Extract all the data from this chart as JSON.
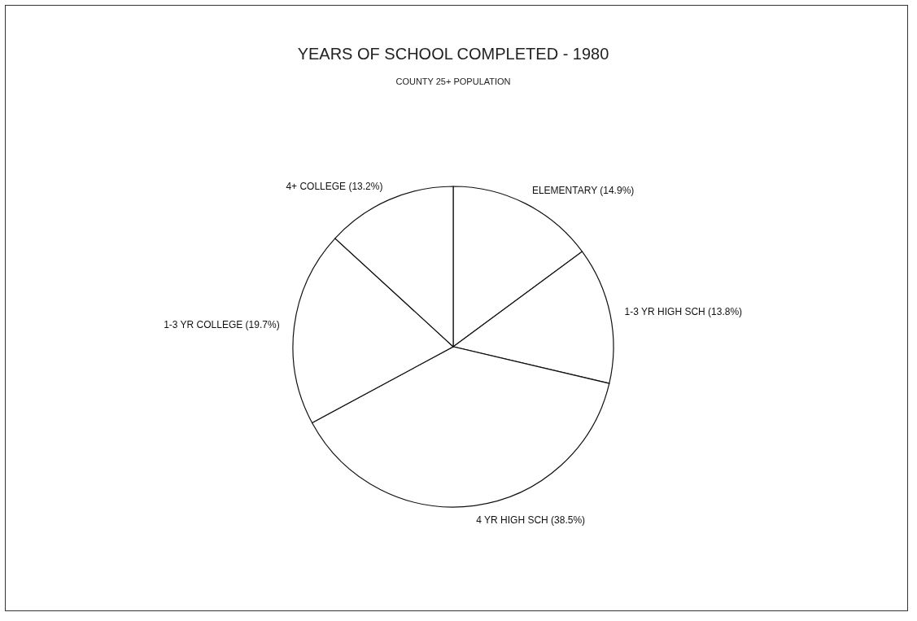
{
  "chart_data": {
    "type": "pie",
    "title": "YEARS OF SCHOOL COMPLETED - 1980",
    "subtitle": "COUNTY 25+ POPULATION",
    "categories": [
      "ELEMENTARY",
      "1-3 YR HIGH SCH",
      "4 YR HIGH SCH",
      "1-3 YR COLLEGE",
      "4+ COLLEGE"
    ],
    "values": [
      14.9,
      13.8,
      38.5,
      19.7,
      13.2
    ],
    "value_labels": [
      "(14.9%)",
      "(13.8%)",
      "(38.5%)",
      "(19.7%)",
      "(13.2%)"
    ],
    "colors": [
      "#ffffff",
      "#ffffff",
      "#ffffff",
      "#ffffff",
      "#ffffff"
    ],
    "legend": false
  }
}
